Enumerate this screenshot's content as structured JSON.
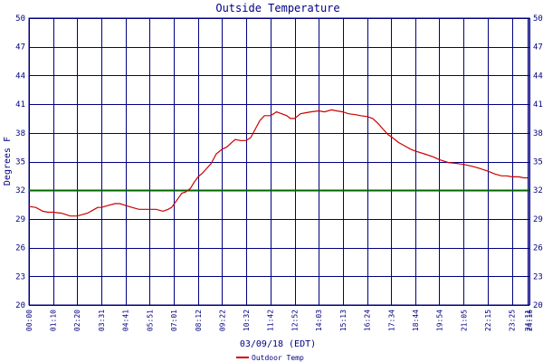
{
  "chart_data": {
    "type": "line",
    "title": "Outside Temperature",
    "xlabel": "03/09/18 (EDT)",
    "ylabel": "Degrees F",
    "ylim": [
      20,
      50
    ],
    "yticks": [
      20,
      23,
      26,
      29,
      32,
      35,
      38,
      41,
      44,
      47,
      50
    ],
    "ytick_labels": [
      "20",
      "23",
      "26",
      "29",
      "32",
      "35",
      "38",
      "41",
      "44",
      "47",
      "50"
    ],
    "xlim": [
      0,
      1456
    ],
    "xticks": [
      0,
      70,
      140,
      211,
      281,
      351,
      421,
      492,
      562,
      632,
      702,
      773,
      843,
      913,
      984,
      1054,
      1124,
      1194,
      1265,
      1335,
      1405,
      1451,
      1456
    ],
    "xtick_labels": [
      "00:00",
      "01:10",
      "02:20",
      "03:31",
      "04:41",
      "05:51",
      "07:01",
      "08:12",
      "09:22",
      "10:32",
      "11:42",
      "12:52",
      "14:03",
      "15:13",
      "16:24",
      "17:34",
      "18:44",
      "19:54",
      "21:05",
      "22:15",
      "23:25",
      "24:11",
      "24:16"
    ],
    "grid": true,
    "legend_position": "bottom-center",
    "reference_line": {
      "y": 32,
      "color": "#006600"
    },
    "colors": {
      "series": "#cc0000",
      "grid": "#000080",
      "border": "#000080",
      "reference": "#006600"
    },
    "series": [
      {
        "name": "Outdoor Temp",
        "x": [
          0,
          20,
          40,
          55,
          70,
          95,
          120,
          140,
          170,
          190,
          200,
          211,
          230,
          250,
          265,
          281,
          300,
          320,
          335,
          351,
          370,
          390,
          405,
          415,
          421,
          435,
          445,
          455,
          470,
          480,
          492,
          505,
          515,
          530,
          545,
          562,
          575,
          590,
          600,
          615,
          632,
          645,
          660,
          672,
          685,
          702,
          712,
          720,
          735,
          750,
          760,
          773,
          790,
          805,
          820,
          843,
          860,
          880,
          895,
          913,
          930,
          950,
          965,
          984,
          1000,
          1015,
          1030,
          1045,
          1054,
          1075,
          1095,
          1110,
          1124,
          1150,
          1175,
          1194,
          1220,
          1245,
          1265,
          1290,
          1310,
          1335,
          1355,
          1375,
          1390,
          1405,
          1425,
          1440,
          1451
        ],
        "y": [
          30.3,
          30.2,
          29.8,
          29.7,
          29.7,
          29.6,
          29.3,
          29.3,
          29.6,
          30.0,
          30.2,
          30.2,
          30.4,
          30.6,
          30.6,
          30.4,
          30.2,
          30.0,
          30.0,
          30.0,
          30.0,
          29.8,
          30.0,
          30.2,
          30.5,
          31.2,
          31.7,
          31.8,
          32.2,
          32.8,
          33.4,
          33.8,
          34.2,
          34.8,
          35.8,
          36.3,
          36.5,
          37.0,
          37.3,
          37.2,
          37.2,
          37.5,
          38.5,
          39.3,
          39.8,
          39.8,
          40.0,
          40.2,
          40.0,
          39.8,
          39.5,
          39.5,
          40.0,
          40.1,
          40.2,
          40.3,
          40.2,
          40.4,
          40.3,
          40.2,
          40.0,
          39.9,
          39.8,
          39.7,
          39.5,
          39.0,
          38.4,
          37.8,
          37.6,
          37.0,
          36.6,
          36.3,
          36.1,
          35.8,
          35.5,
          35.2,
          34.9,
          34.8,
          34.7,
          34.5,
          34.3,
          34.0,
          33.7,
          33.5,
          33.5,
          33.4,
          33.4,
          33.3,
          33.3
        ]
      }
    ]
  }
}
